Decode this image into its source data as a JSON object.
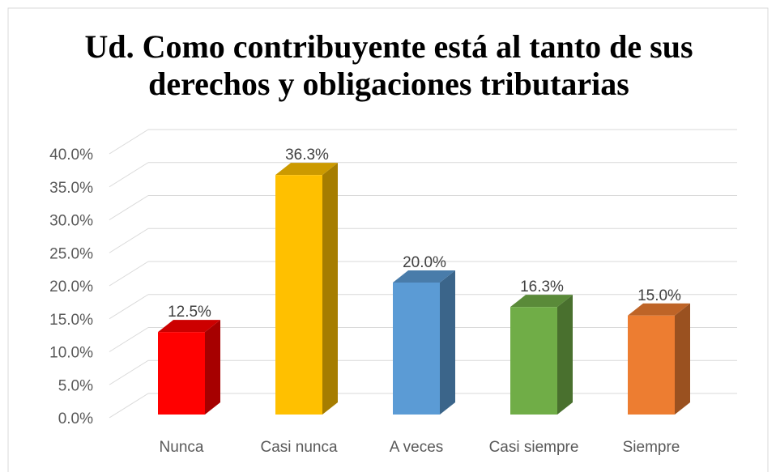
{
  "chart_data": {
    "type": "bar3d",
    "title": [
      "Ud. Como contribuyente está al tanto de sus",
      "derechos y obligaciones tributarias"
    ],
    "categories": [
      "Nunca",
      "Casi nunca",
      "A veces",
      "Casi siempre",
      "Siempre"
    ],
    "values": [
      12.5,
      36.3,
      20.0,
      16.3,
      15.0
    ],
    "value_labels": [
      "12.5%",
      "36.3%",
      "20.0%",
      "16.3%",
      "15.0%"
    ],
    "colors": [
      "#ff0000",
      "#ffc000",
      "#5b9bd5",
      "#70ad47",
      "#ed7d31"
    ],
    "ylim": [
      0,
      40
    ],
    "yticks": [
      {
        "value": 0,
        "label": "0.0%"
      },
      {
        "value": 5,
        "label": "5.0%"
      },
      {
        "value": 10,
        "label": "10.0%"
      },
      {
        "value": 15,
        "label": "15.0%"
      },
      {
        "value": 20,
        "label": "20.0%"
      },
      {
        "value": 25,
        "label": "25.0%"
      },
      {
        "value": 30,
        "label": "30.0%"
      },
      {
        "value": 35,
        "label": "35.0%"
      },
      {
        "value": 40,
        "label": "40.0%"
      }
    ],
    "grid": true
  }
}
